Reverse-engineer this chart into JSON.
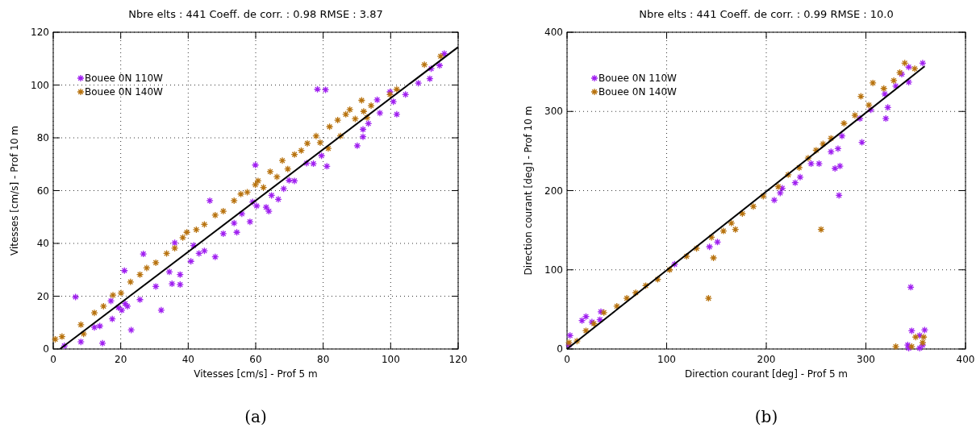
{
  "chart_data": [
    {
      "type": "scatter",
      "title": "Nbre elts : 441 Coeff. de corr. : 0.98 RMSE : 3.87",
      "xlabel": "Vitesses [cm/s] - Prof 5 m",
      "ylabel": "Vitesses [cm/s] - Prof 10 m",
      "xlim": [
        0,
        120
      ],
      "ylim": [
        0,
        120
      ],
      "xticks": [
        0,
        20,
        40,
        60,
        80,
        100,
        120
      ],
      "yticks": [
        0,
        20,
        40,
        60,
        80,
        100,
        120
      ],
      "grid": true,
      "legend": "top left",
      "marker": "cross",
      "annotations": [
        "(a)"
      ],
      "series": [
        {
          "name": "Bouee 0N 110W",
          "color": "#a020f0",
          "x": [
            6.6,
            8.2,
            14.6,
            12.2,
            13.8,
            17.5,
            17.1,
            21.1,
            26.7,
            23.1,
            20.3,
            22,
            32,
            25.7,
            30.4,
            35.2,
            37.6,
            37.6,
            36,
            34.4,
            40.8,
            43.2,
            44.8,
            48,
            46.4,
            50.4,
            54.4,
            53.6,
            55.9,
            58.3,
            59.9,
            60.3,
            63.9,
            63.1,
            64.7,
            66.7,
            68.3,
            69.9,
            71.5,
            75.1,
            77.1,
            79.5,
            81.1,
            78.3,
            80.7,
            90.1,
            91.8,
            91.8,
            93.4,
            96.8,
            96,
            100.8,
            101.8,
            99.8,
            104.4,
            108.2,
            111.6,
            112,
            114.5,
            115.9,
            3.3,
            19.3,
            21.3,
            59.1,
            41.6
          ],
          "values": [
            19.7,
            2.7,
            2.2,
            8.2,
            8.7,
            11.4,
            18.2,
            29.7,
            36,
            7.2,
            14.7,
            16.2,
            14.7,
            18.7,
            23.7,
            24.7,
            24.4,
            28.2,
            40.2,
            29.2,
            33.2,
            36.2,
            37.2,
            34.9,
            56.2,
            43.7,
            44.2,
            47.7,
            51.2,
            48.2,
            69.7,
            54.2,
            52.2,
            53.7,
            58.2,
            56.7,
            60.7,
            63.9,
            63.7,
            70.4,
            70.2,
            73.2,
            69.2,
            98.4,
            98.2,
            77,
            80.4,
            83.2,
            85.4,
            89.4,
            94.4,
            93.7,
            88.9,
            97.4,
            96.4,
            100.7,
            102.4,
            106.2,
            107.4,
            111.9,
            1.2,
            15.7,
            17.2,
            55.7,
            39.2
          ]
        },
        {
          "name": "Bouee 0N 140W",
          "color": "#b8730f",
          "x": [
            0.6,
            2.6,
            8.2,
            9,
            12.2,
            14.9,
            17.7,
            20.1,
            22.9,
            25.7,
            27.7,
            30.4,
            33.6,
            36,
            39.6,
            38.4,
            42.4,
            44.8,
            48,
            50.4,
            53.6,
            55.6,
            57.5,
            59.9,
            60.7,
            62.3,
            64.3,
            66.3,
            67.9,
            69.5,
            71.5,
            73.5,
            75.3,
            77.9,
            79.1,
            81.5,
            81.9,
            84.3,
            85.1,
            86.7,
            87.9,
            89.5,
            91.4,
            92,
            93,
            94.2,
            99.8,
            101.8,
            110,
            114.8
          ],
          "values": [
            3.7,
            4.7,
            9.2,
            5.7,
            13.7,
            16.2,
            20.4,
            21.2,
            25.4,
            28.2,
            30.7,
            32.7,
            36.2,
            38.2,
            44.2,
            42.2,
            45.2,
            47.2,
            50.7,
            52.2,
            56.2,
            58.7,
            59.4,
            62.2,
            63.7,
            61.2,
            67.2,
            65.2,
            71.4,
            68.2,
            73.7,
            75.2,
            77.9,
            80.7,
            78.2,
            76,
            84.2,
            86.7,
            80.7,
            88.9,
            90.7,
            87.2,
            94.2,
            90,
            87.7,
            92.2,
            96.4,
            98.4,
            107.7,
            110.9
          ]
        },
        {
          "type": "line",
          "color": "#000000",
          "marker": "none",
          "x": [
            2,
            120
          ],
          "values": [
            0,
            114.4
          ]
        }
      ]
    },
    {
      "type": "scatter",
      "title": "Nbre elts : 441 Coeff. de corr. : 0.99 RMSE : 10.0",
      "xlabel": "Direction courant [deg] - Prof 5 m",
      "ylabel": "Direction courant [deg] - Prof 10 m",
      "xlim": [
        0,
        400
      ],
      "ylim": [
        0,
        400
      ],
      "xticks": [
        0,
        100,
        200,
        300,
        400
      ],
      "yticks": [
        0,
        100,
        200,
        300,
        400
      ],
      "grid": true,
      "legend": "top left",
      "marker": "cross",
      "annotations": [
        "(b)"
      ],
      "series": [
        {
          "name": "Bouee 0N 110W",
          "color": "#a020f0",
          "x": [
            3,
            2,
            15,
            19,
            25,
            33,
            34,
            108,
            143,
            151,
            208,
            214,
            216,
            229,
            234,
            245,
            253,
            265,
            269,
            274,
            273,
            272,
            276,
            296,
            294,
            305,
            320,
            322,
            319,
            330,
            336,
            343,
            343,
            357,
            345,
            346,
            359,
            354,
            342,
            343,
            357,
            354
          ],
          "values": [
            17,
            5,
            36,
            41,
            34,
            37,
            47,
            107,
            129,
            135,
            188,
            197,
            203,
            210,
            217,
            234,
            234,
            249,
            228,
            231,
            194,
            253,
            269,
            261,
            291,
            302,
            291,
            305,
            322,
            332,
            347,
            356,
            337,
            361,
            78,
            23,
            24,
            17,
            5,
            1,
            5,
            1
          ]
        },
        {
          "name": "Bouee 0N 140W",
          "color": "#b8730f",
          "x": [
            2,
            10,
            19,
            27,
            37,
            50,
            60,
            69,
            79,
            91,
            103,
            120,
            130,
            145,
            157,
            165,
            169,
            176,
            187,
            197,
            212,
            222,
            233,
            242,
            250,
            257,
            265,
            278,
            289,
            303,
            295,
            307,
            318,
            328,
            334,
            339,
            349,
            255,
            147,
            142,
            330,
            350,
            346,
            357,
            358
          ],
          "values": [
            8,
            10,
            23,
            32,
            46,
            54,
            64,
            71,
            80,
            88,
            100,
            117,
            127,
            141,
            149,
            159,
            151,
            171,
            180,
            193,
            205,
            220,
            229,
            241,
            251,
            259,
            266,
            285,
            295,
            308,
            319,
            336,
            329,
            339,
            349,
            361,
            354,
            151,
            115,
            64,
            3,
            15,
            3,
            8,
            15
          ]
        },
        {
          "type": "line",
          "color": "#000000",
          "marker": "none",
          "x": [
            0,
            359
          ],
          "values": [
            0,
            357
          ]
        }
      ]
    }
  ]
}
